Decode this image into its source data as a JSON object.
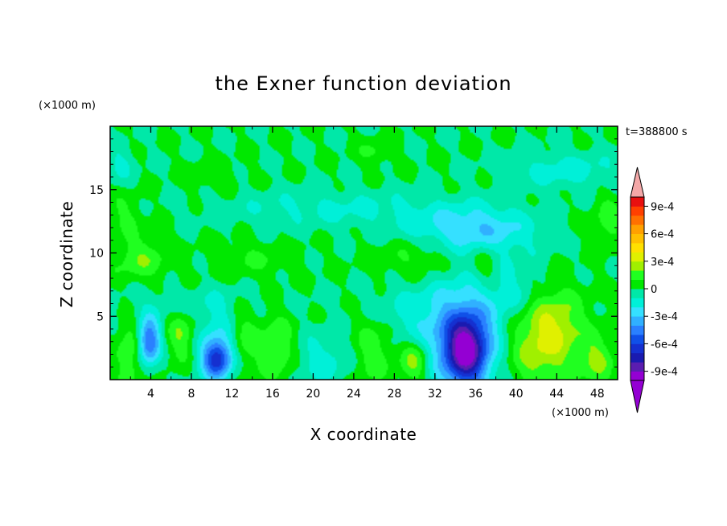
{
  "chart_data": {
    "type": "heatmap",
    "title": "the Exner function deviation",
    "xlabel": "X coordinate",
    "ylabel": "Z coordinate",
    "x_unit": "(×1000 m)",
    "y_unit": "(×1000 m)",
    "time_label": "t=388800 s",
    "xlim": [
      0,
      50
    ],
    "ylim": [
      0,
      20
    ],
    "x_ticks": [
      4,
      8,
      12,
      16,
      20,
      24,
      28,
      32,
      36,
      40,
      44,
      48
    ],
    "y_ticks": [
      5,
      10,
      15
    ],
    "grid": false,
    "legend": "right",
    "colorbar": {
      "min": -0.001,
      "max": 0.001,
      "step": 0.0001,
      "labels": [
        {
          "value": 0.0009,
          "text": "9e-4"
        },
        {
          "value": 0.0006,
          "text": "6e-4"
        },
        {
          "value": 0.0003,
          "text": "3e-4"
        },
        {
          "value": 0,
          "text": "0"
        },
        {
          "value": -0.0003,
          "text": "-3e-4"
        },
        {
          "value": -0.0006,
          "text": "-6e-4"
        },
        {
          "value": -0.0009,
          "text": "-9e-4"
        }
      ],
      "colors": [
        "#9400d3",
        "#5a1db0",
        "#1a1ab0",
        "#1530d0",
        "#1050e8",
        "#2a80ff",
        "#30b0ff",
        "#35e0ff",
        "#00f0d8",
        "#00e8a8",
        "#00e800",
        "#20ff20",
        "#a0f000",
        "#e0f000",
        "#ffe000",
        "#ffc000",
        "#ffa000",
        "#ff7000",
        "#ff4000",
        "#e81010"
      ],
      "over_color": "#f4a8a8",
      "under_color": "#9400d3"
    },
    "field_features": [
      {
        "x": 35,
        "z": 2.2,
        "amp": -0.00072,
        "sx": 1.4,
        "sz": 1.8
      },
      {
        "x": 35,
        "z": 3.5,
        "amp": -0.0004,
        "sx": 2.8,
        "sz": 3.0
      },
      {
        "x": 3.8,
        "z": 3.0,
        "amp": -0.00055,
        "sx": 0.8,
        "sz": 1.3
      },
      {
        "x": 10.5,
        "z": 1.6,
        "amp": -0.0005,
        "sx": 1.0,
        "sz": 1.0
      },
      {
        "x": 11,
        "z": 2.5,
        "amp": -0.00025,
        "sx": 1.6,
        "sz": 2.0
      },
      {
        "x": 21,
        "z": 1.5,
        "amp": -0.00015,
        "sx": 2.0,
        "sz": 1.5
      },
      {
        "x": 42,
        "z": 2.5,
        "amp": 0.00025,
        "sx": 2.5,
        "sz": 2.5
      },
      {
        "x": 44,
        "z": 4.5,
        "amp": 0.0002,
        "sx": 2.0,
        "sz": 2.0
      },
      {
        "x": 30,
        "z": 1.5,
        "amp": 0.00028,
        "sx": 1.0,
        "sz": 1.2
      },
      {
        "x": 26,
        "z": 2.5,
        "amp": 0.0002,
        "sx": 1.5,
        "sz": 2.0
      },
      {
        "x": 2,
        "z": 2.0,
        "amp": 0.0002,
        "sx": 1.0,
        "sz": 2.0
      },
      {
        "x": 7,
        "z": 3.5,
        "amp": 0.0002,
        "sx": 1.0,
        "sz": 1.5
      },
      {
        "x": 13,
        "z": 3.0,
        "amp": 0.00022,
        "sx": 1.2,
        "sz": 2.0
      },
      {
        "x": 16.5,
        "z": 2.5,
        "amp": 0.0002,
        "sx": 1.2,
        "sz": 2.0
      },
      {
        "x": 48,
        "z": 1.5,
        "amp": 0.0002,
        "sx": 1.2,
        "sz": 1.5
      },
      {
        "x": 29,
        "z": 5.0,
        "amp": -0.00012,
        "sx": 3.0,
        "sz": 2.0
      },
      {
        "x": 34,
        "z": 12.0,
        "amp": -0.0002,
        "sx": 4.0,
        "sz": 1.2
      },
      {
        "x": 38,
        "z": 11.5,
        "amp": -0.00015,
        "sx": 3.0,
        "sz": 1.5
      },
      {
        "x": 22,
        "z": 13.5,
        "amp": -0.00012,
        "sx": 8.0,
        "sz": 1.0
      },
      {
        "x": 45,
        "z": 16.5,
        "amp": -0.00015,
        "sx": 4.0,
        "sz": 1.0
      },
      {
        "x": 1,
        "z": 17.0,
        "amp": -0.00012,
        "sx": 1.0,
        "sz": 1.0
      },
      {
        "x": 3,
        "z": 9.5,
        "amp": 0.00018,
        "sx": 2.0,
        "sz": 1.2
      },
      {
        "x": 14,
        "z": 9.5,
        "amp": 0.0001,
        "sx": 3.0,
        "sz": 1.0
      },
      {
        "x": 30,
        "z": 9.5,
        "amp": 0.00012,
        "sx": 3.0,
        "sz": 1.2
      },
      {
        "x": 37,
        "z": 9.0,
        "amp": 0.00015,
        "sx": 1.0,
        "sz": 1.3
      },
      {
        "x": 49,
        "z": 12.5,
        "amp": 0.00015,
        "sx": 1.0,
        "sz": 1.5
      },
      {
        "x": 1.5,
        "z": 13.0,
        "amp": 0.00012,
        "sx": 1.2,
        "sz": 1.2
      },
      {
        "x": 26,
        "z": 18.0,
        "amp": 0.00012,
        "sx": 1.2,
        "sz": 0.7
      },
      {
        "x": 10,
        "z": 16.0,
        "amp": 8e-05,
        "sx": 2.0,
        "sz": 0.8
      },
      {
        "x": 8,
        "z": 6.0,
        "amp": -8e-05,
        "sx": 6.0,
        "sz": 1.0
      },
      {
        "x": 40,
        "z": 7.0,
        "amp": -0.00012,
        "sx": 2.0,
        "sz": 1.5
      }
    ]
  }
}
